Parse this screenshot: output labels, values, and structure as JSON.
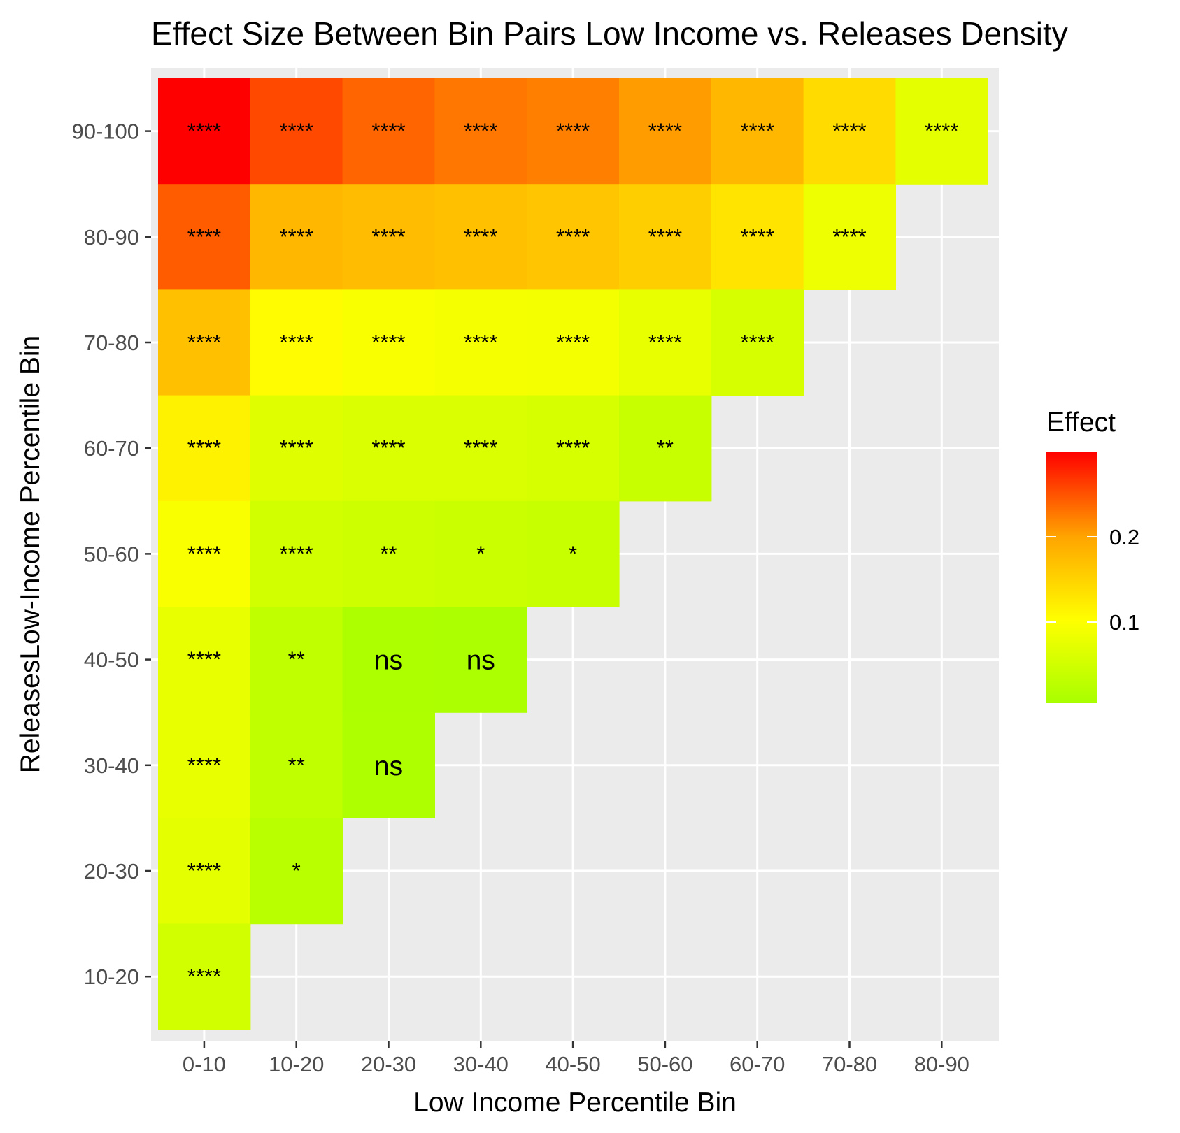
{
  "chart_data": {
    "type": "heatmap",
    "title": "Effect Size Between Bin Pairs Low Income vs. Releases Density",
    "xlabel": "Low Income Percentile Bin",
    "ylabel": "ReleasesLow-Income Percentile Bin",
    "x_categories": [
      "0-10",
      "10-20",
      "20-30",
      "30-40",
      "40-50",
      "50-60",
      "60-70",
      "70-80",
      "80-90"
    ],
    "y_categories": [
      "10-20",
      "20-30",
      "30-40",
      "40-50",
      "50-60",
      "60-70",
      "70-80",
      "80-90",
      "90-100"
    ],
    "legend": {
      "title": "Effect",
      "ticks": [
        0.1,
        0.2
      ],
      "range": [
        0.005,
        0.3
      ],
      "placement": "right"
    },
    "colors": {
      "low": "#a8ff00",
      "mid": "#ffff00",
      "high": "#ff0000",
      "panel_bg": "#ebebeb",
      "grid": "#ffffff"
    },
    "grid": true,
    "cells": [
      {
        "x": "0-10",
        "y": "90-100",
        "effect": 0.29,
        "label": "****"
      },
      {
        "x": "10-20",
        "y": "90-100",
        "effect": 0.25,
        "label": "****"
      },
      {
        "x": "20-30",
        "y": "90-100",
        "effect": 0.235,
        "label": "****"
      },
      {
        "x": "30-40",
        "y": "90-100",
        "effect": 0.225,
        "label": "****"
      },
      {
        "x": "40-50",
        "y": "90-100",
        "effect": 0.22,
        "label": "****"
      },
      {
        "x": "50-60",
        "y": "90-100",
        "effect": 0.205,
        "label": "****"
      },
      {
        "x": "60-70",
        "y": "90-100",
        "effect": 0.18,
        "label": "****"
      },
      {
        "x": "70-80",
        "y": "90-100",
        "effect": 0.14,
        "label": "****"
      },
      {
        "x": "80-90",
        "y": "90-100",
        "effect": 0.07,
        "label": "****"
      },
      {
        "x": "0-10",
        "y": "80-90",
        "effect": 0.24,
        "label": "****"
      },
      {
        "x": "10-20",
        "y": "80-90",
        "effect": 0.18,
        "label": "****"
      },
      {
        "x": "20-30",
        "y": "80-90",
        "effect": 0.175,
        "label": "****"
      },
      {
        "x": "30-40",
        "y": "80-90",
        "effect": 0.17,
        "label": "****"
      },
      {
        "x": "40-50",
        "y": "80-90",
        "effect": 0.165,
        "label": "****"
      },
      {
        "x": "50-60",
        "y": "80-90",
        "effect": 0.155,
        "label": "****"
      },
      {
        "x": "60-70",
        "y": "80-90",
        "effect": 0.13,
        "label": "****"
      },
      {
        "x": "70-80",
        "y": "80-90",
        "effect": 0.08,
        "label": "****"
      },
      {
        "x": "0-10",
        "y": "70-80",
        "effect": 0.17,
        "label": "****"
      },
      {
        "x": "10-20",
        "y": "70-80",
        "effect": 0.105,
        "label": "****"
      },
      {
        "x": "20-30",
        "y": "70-80",
        "effect": 0.095,
        "label": "****"
      },
      {
        "x": "30-40",
        "y": "70-80",
        "effect": 0.09,
        "label": "****"
      },
      {
        "x": "40-50",
        "y": "70-80",
        "effect": 0.088,
        "label": "****"
      },
      {
        "x": "50-60",
        "y": "70-80",
        "effect": 0.075,
        "label": "****"
      },
      {
        "x": "60-70",
        "y": "70-80",
        "effect": 0.055,
        "label": "****"
      },
      {
        "x": "0-10",
        "y": "60-70",
        "effect": 0.115,
        "label": "****"
      },
      {
        "x": "10-20",
        "y": "60-70",
        "effect": 0.065,
        "label": "****"
      },
      {
        "x": "20-30",
        "y": "60-70",
        "effect": 0.06,
        "label": "****"
      },
      {
        "x": "30-40",
        "y": "60-70",
        "effect": 0.058,
        "label": "****"
      },
      {
        "x": "40-50",
        "y": "60-70",
        "effect": 0.055,
        "label": "****"
      },
      {
        "x": "50-60",
        "y": "60-70",
        "effect": 0.04,
        "label": "**"
      },
      {
        "x": "0-10",
        "y": "50-60",
        "effect": 0.095,
        "label": "****"
      },
      {
        "x": "10-20",
        "y": "50-60",
        "effect": 0.05,
        "label": "****"
      },
      {
        "x": "20-30",
        "y": "50-60",
        "effect": 0.045,
        "label": "**"
      },
      {
        "x": "30-40",
        "y": "50-60",
        "effect": 0.042,
        "label": "*"
      },
      {
        "x": "40-50",
        "y": "50-60",
        "effect": 0.04,
        "label": "*"
      },
      {
        "x": "0-10",
        "y": "40-50",
        "effect": 0.075,
        "label": "****"
      },
      {
        "x": "10-20",
        "y": "40-50",
        "effect": 0.03,
        "label": "**"
      },
      {
        "x": "20-30",
        "y": "40-50",
        "effect": 0.01,
        "label": "ns"
      },
      {
        "x": "30-40",
        "y": "40-50",
        "effect": 0.008,
        "label": "ns"
      },
      {
        "x": "0-10",
        "y": "30-40",
        "effect": 0.075,
        "label": "****"
      },
      {
        "x": "10-20",
        "y": "30-40",
        "effect": 0.03,
        "label": "**"
      },
      {
        "x": "20-30",
        "y": "30-40",
        "effect": 0.012,
        "label": "ns"
      },
      {
        "x": "0-10",
        "y": "20-30",
        "effect": 0.07,
        "label": "****"
      },
      {
        "x": "10-20",
        "y": "20-30",
        "effect": 0.025,
        "label": "*"
      },
      {
        "x": "0-10",
        "y": "10-20",
        "effect": 0.05,
        "label": "****"
      }
    ]
  }
}
